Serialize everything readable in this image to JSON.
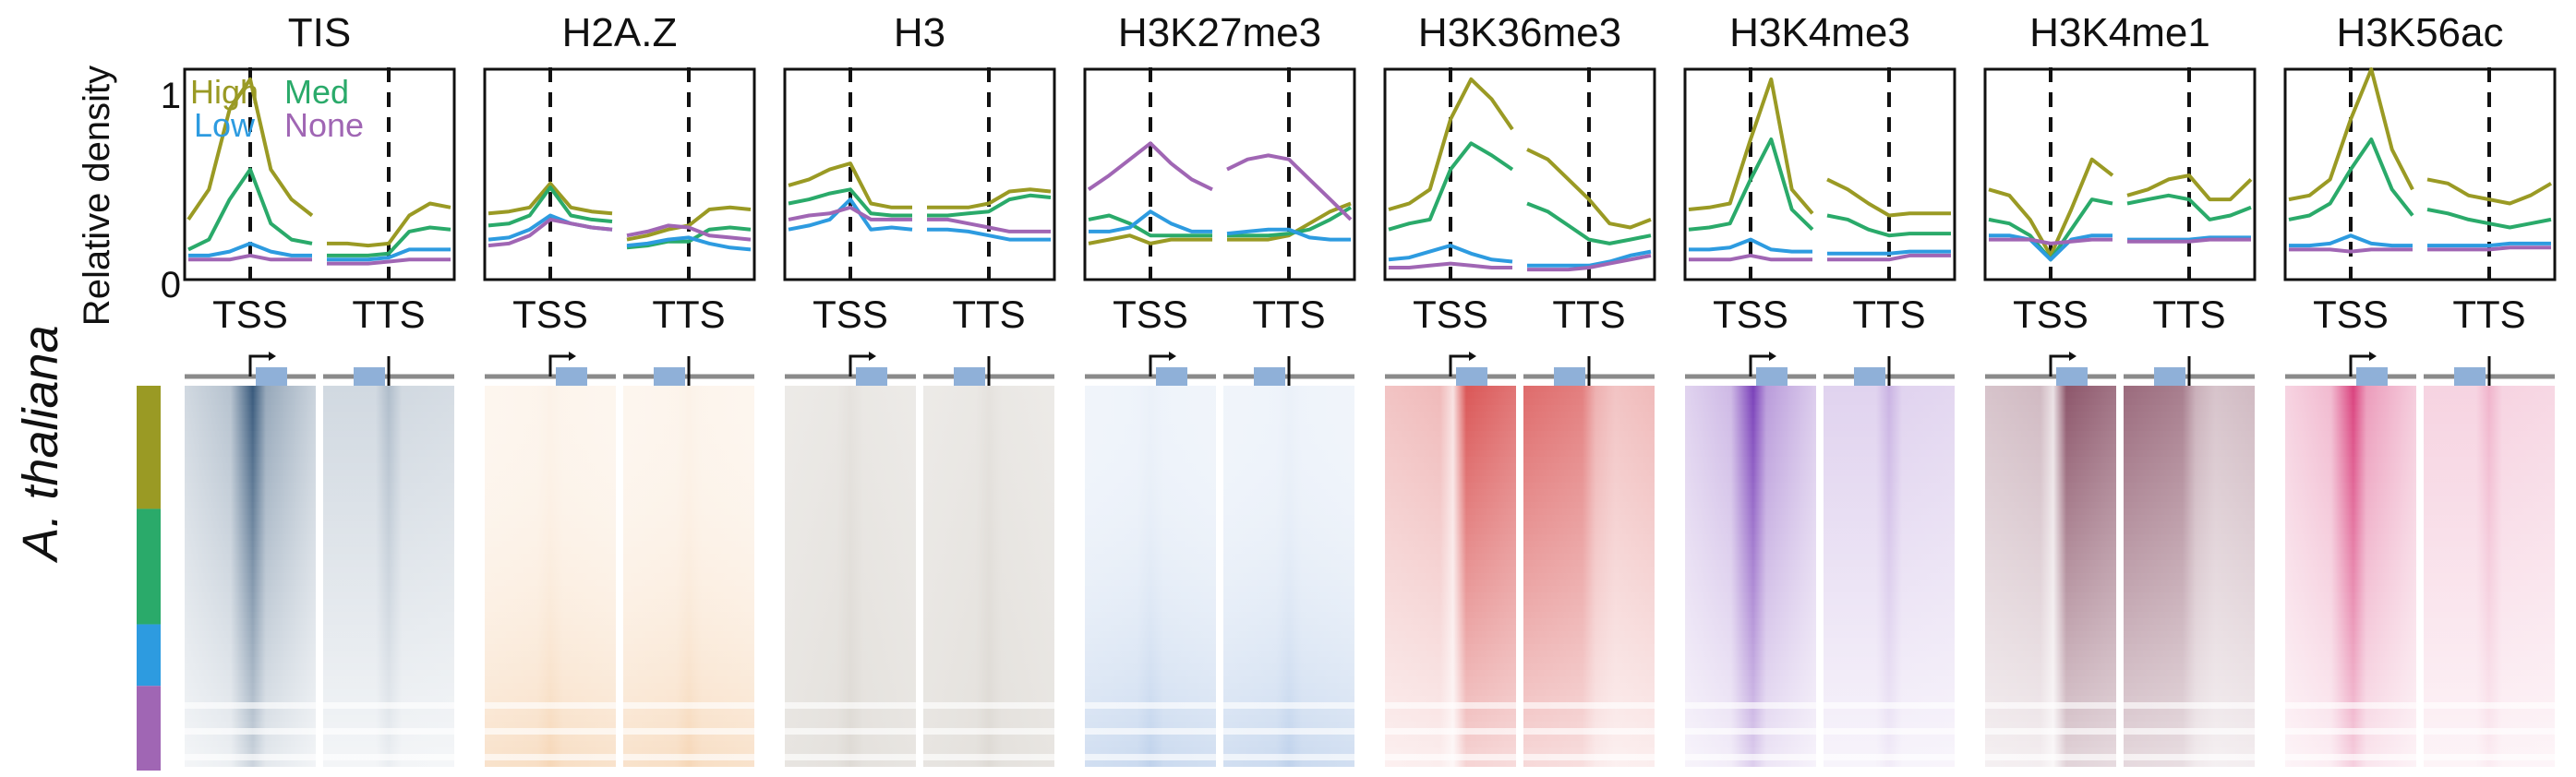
{
  "figure": {
    "species_label": "A. thaliana",
    "ylabel": "Relative density",
    "y_ticks": [
      "1",
      "0"
    ],
    "colors": {
      "high": "#9a9a24",
      "med": "#2aaa6a",
      "low": "#2d9be0",
      "none": "#a066b4",
      "axis": "#111111",
      "track": "#8a8a8a",
      "gene_box": "#8fb0d8"
    }
  },
  "chart_data": {
    "type": "line",
    "title": "",
    "ylabel": "Relative density",
    "ylim": [
      0,
      1.05
    ],
    "x_ticks": [
      "TSS",
      "TTS"
    ],
    "legend": {
      "placement": "top-left of first panel",
      "entries": [
        {
          "name": "High",
          "color": "#9a9a24"
        },
        {
          "name": "Med",
          "color": "#2aaa6a"
        },
        {
          "name": "Low",
          "color": "#2d9be0"
        },
        {
          "name": "None",
          "color": "#a066b4"
        }
      ]
    },
    "row_groups": [
      "High",
      "Med",
      "Low",
      "None"
    ],
    "panels": [
      {
        "name": "TIS",
        "heat_color": "#2f5276",
        "heat_pattern": "tss_focus",
        "tss": {
          "High": [
            0.3,
            0.45,
            0.85,
            1.0,
            0.55,
            0.4,
            0.32
          ],
          "Med": [
            0.15,
            0.2,
            0.4,
            0.55,
            0.28,
            0.2,
            0.18
          ],
          "Low": [
            0.12,
            0.12,
            0.14,
            0.18,
            0.14,
            0.12,
            0.12
          ],
          "None": [
            0.1,
            0.1,
            0.1,
            0.12,
            0.1,
            0.1,
            0.1
          ]
        },
        "tts": {
          "High": [
            0.18,
            0.18,
            0.17,
            0.18,
            0.32,
            0.38,
            0.36
          ],
          "Med": [
            0.12,
            0.12,
            0.12,
            0.13,
            0.24,
            0.26,
            0.25
          ],
          "Low": [
            0.1,
            0.1,
            0.1,
            0.11,
            0.15,
            0.15,
            0.15
          ],
          "None": [
            0.08,
            0.08,
            0.08,
            0.09,
            0.1,
            0.1,
            0.1
          ]
        }
      },
      {
        "name": "H2A.Z",
        "heat_color": "#e48525",
        "heat_pattern": "bottom",
        "tss": {
          "High": [
            0.33,
            0.34,
            0.36,
            0.48,
            0.36,
            0.34,
            0.33
          ],
          "Med": [
            0.27,
            0.28,
            0.32,
            0.46,
            0.32,
            0.3,
            0.29
          ],
          "Low": [
            0.2,
            0.21,
            0.25,
            0.32,
            0.28,
            0.26,
            0.25
          ],
          "None": [
            0.17,
            0.18,
            0.22,
            0.3,
            0.28,
            0.26,
            0.25
          ]
        },
        "tts": {
          "High": [
            0.2,
            0.22,
            0.25,
            0.27,
            0.35,
            0.36,
            0.35
          ],
          "Med": [
            0.16,
            0.17,
            0.19,
            0.19,
            0.25,
            0.26,
            0.25
          ],
          "Low": [
            0.17,
            0.18,
            0.2,
            0.21,
            0.18,
            0.16,
            0.15
          ],
          "None": [
            0.22,
            0.24,
            0.27,
            0.26,
            0.22,
            0.21,
            0.2
          ]
        }
      },
      {
        "name": "H3",
        "heat_color": "#8f8270",
        "heat_pattern": "uniform",
        "tss": {
          "High": [
            0.47,
            0.5,
            0.55,
            0.58,
            0.38,
            0.36,
            0.36
          ],
          "Med": [
            0.38,
            0.4,
            0.43,
            0.45,
            0.33,
            0.32,
            0.32
          ],
          "Low": [
            0.25,
            0.27,
            0.3,
            0.4,
            0.25,
            0.26,
            0.25
          ],
          "None": [
            0.3,
            0.32,
            0.33,
            0.36,
            0.3,
            0.3,
            0.3
          ]
        },
        "tts": {
          "High": [
            0.36,
            0.36,
            0.36,
            0.38,
            0.44,
            0.45,
            0.44
          ],
          "Med": [
            0.32,
            0.32,
            0.33,
            0.34,
            0.4,
            0.42,
            0.41
          ],
          "Low": [
            0.25,
            0.25,
            0.24,
            0.22,
            0.2,
            0.2,
            0.2
          ],
          "None": [
            0.3,
            0.3,
            0.28,
            0.26,
            0.24,
            0.24,
            0.24
          ]
        }
      },
      {
        "name": "H3K27me3",
        "heat_color": "#3d76c4",
        "heat_pattern": "bottom",
        "tss": {
          "High": [
            0.18,
            0.2,
            0.22,
            0.18,
            0.2,
            0.2,
            0.2
          ],
          "Med": [
            0.3,
            0.32,
            0.28,
            0.22,
            0.22,
            0.22,
            0.22
          ],
          "Low": [
            0.24,
            0.24,
            0.26,
            0.34,
            0.28,
            0.24,
            0.24
          ],
          "None": [
            0.45,
            0.52,
            0.6,
            0.68,
            0.58,
            0.5,
            0.45
          ]
        },
        "tts": {
          "High": [
            0.2,
            0.2,
            0.2,
            0.22,
            0.28,
            0.34,
            0.38
          ],
          "Med": [
            0.22,
            0.22,
            0.22,
            0.23,
            0.25,
            0.3,
            0.36
          ],
          "Low": [
            0.23,
            0.24,
            0.25,
            0.25,
            0.21,
            0.2,
            0.2
          ],
          "None": [
            0.55,
            0.6,
            0.62,
            0.6,
            0.5,
            0.4,
            0.3
          ]
        }
      },
      {
        "name": "H3K36me3",
        "heat_color": "#d43b3b",
        "heat_pattern": "gene_body",
        "tss": {
          "High": [
            0.35,
            0.38,
            0.45,
            0.8,
            1.0,
            0.9,
            0.75
          ],
          "Med": [
            0.25,
            0.28,
            0.3,
            0.55,
            0.68,
            0.62,
            0.55
          ],
          "Low": [
            0.1,
            0.11,
            0.14,
            0.17,
            0.13,
            0.1,
            0.09
          ],
          "None": [
            0.06,
            0.06,
            0.07,
            0.08,
            0.07,
            0.06,
            0.06
          ]
        },
        "tts": {
          "High": [
            0.65,
            0.6,
            0.5,
            0.4,
            0.28,
            0.26,
            0.3
          ],
          "Med": [
            0.38,
            0.34,
            0.27,
            0.2,
            0.18,
            0.2,
            0.22
          ],
          "Low": [
            0.07,
            0.07,
            0.07,
            0.07,
            0.09,
            0.12,
            0.14
          ],
          "None": [
            0.05,
            0.05,
            0.05,
            0.06,
            0.08,
            0.1,
            0.12
          ]
        }
      },
      {
        "name": "H3K4me3",
        "heat_color": "#7438b6",
        "heat_pattern": "tss_focus",
        "tss": {
          "High": [
            0.35,
            0.36,
            0.38,
            0.7,
            1.0,
            0.45,
            0.33
          ],
          "Med": [
            0.25,
            0.26,
            0.28,
            0.5,
            0.7,
            0.35,
            0.25
          ],
          "Low": [
            0.15,
            0.15,
            0.16,
            0.2,
            0.15,
            0.14,
            0.14
          ],
          "None": [
            0.1,
            0.1,
            0.1,
            0.12,
            0.1,
            0.1,
            0.1
          ]
        },
        "tts": {
          "High": [
            0.5,
            0.45,
            0.38,
            0.32,
            0.33,
            0.33,
            0.33
          ],
          "Med": [
            0.32,
            0.3,
            0.25,
            0.22,
            0.23,
            0.23,
            0.23
          ],
          "Low": [
            0.13,
            0.13,
            0.13,
            0.13,
            0.14,
            0.14,
            0.14
          ],
          "None": [
            0.1,
            0.1,
            0.1,
            0.1,
            0.12,
            0.12,
            0.12
          ]
        }
      },
      {
        "name": "H3K4me1",
        "heat_color": "#7a3a52",
        "heat_pattern": "gene_body",
        "tss": {
          "High": [
            0.45,
            0.42,
            0.3,
            0.12,
            0.35,
            0.6,
            0.52
          ],
          "Med": [
            0.3,
            0.28,
            0.22,
            0.1,
            0.25,
            0.4,
            0.38
          ],
          "Low": [
            0.22,
            0.22,
            0.2,
            0.1,
            0.2,
            0.22,
            0.22
          ],
          "None": [
            0.2,
            0.2,
            0.2,
            0.18,
            0.19,
            0.2,
            0.2
          ]
        },
        "tts": {
          "High": [
            0.42,
            0.45,
            0.5,
            0.52,
            0.4,
            0.4,
            0.5
          ],
          "Med": [
            0.38,
            0.4,
            0.42,
            0.4,
            0.3,
            0.32,
            0.36
          ],
          "Low": [
            0.2,
            0.2,
            0.2,
            0.2,
            0.21,
            0.21,
            0.21
          ],
          "None": [
            0.19,
            0.19,
            0.19,
            0.19,
            0.2,
            0.2,
            0.2
          ]
        }
      },
      {
        "name": "H3K56ac",
        "heat_color": "#d83a78",
        "heat_pattern": "tss_focus",
        "tss": {
          "High": [
            0.4,
            0.42,
            0.5,
            0.8,
            1.05,
            0.65,
            0.45
          ],
          "Med": [
            0.3,
            0.32,
            0.38,
            0.55,
            0.7,
            0.45,
            0.32
          ],
          "Low": [
            0.17,
            0.17,
            0.18,
            0.22,
            0.18,
            0.17,
            0.17
          ],
          "None": [
            0.15,
            0.15,
            0.15,
            0.14,
            0.15,
            0.15,
            0.15
          ]
        },
        "tts": {
          "High": [
            0.5,
            0.48,
            0.42,
            0.4,
            0.38,
            0.42,
            0.48
          ],
          "Med": [
            0.35,
            0.33,
            0.3,
            0.28,
            0.26,
            0.28,
            0.3
          ],
          "Low": [
            0.17,
            0.17,
            0.17,
            0.17,
            0.18,
            0.18,
            0.18
          ],
          "None": [
            0.15,
            0.15,
            0.15,
            0.15,
            0.16,
            0.16,
            0.16
          ]
        }
      }
    ]
  }
}
